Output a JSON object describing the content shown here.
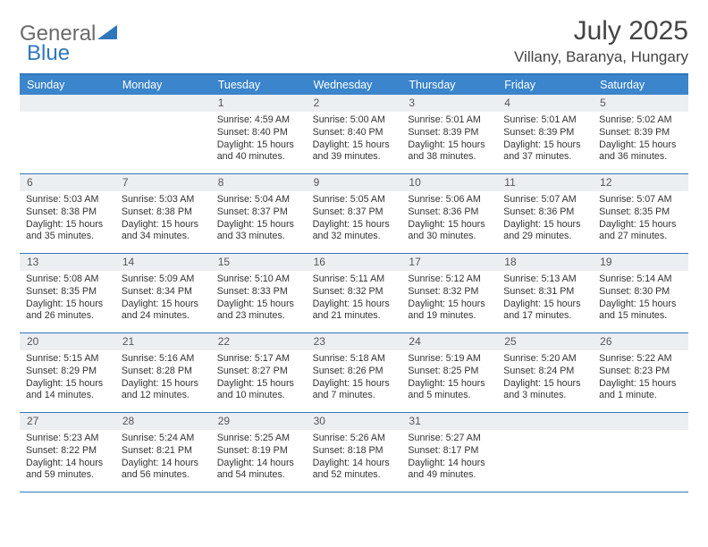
{
  "logo": {
    "part1": "General",
    "part2": "Blue"
  },
  "title": "July 2025",
  "location": "Villany, Baranya, Hungary",
  "header_bg": "#3a85cc",
  "accent": "#2f77bd",
  "num_bg": "#eceff2",
  "day_names": [
    "Sunday",
    "Monday",
    "Tuesday",
    "Wednesday",
    "Thursday",
    "Friday",
    "Saturday"
  ],
  "weeks": [
    [
      {
        "n": "",
        "sr": "",
        "ss": "",
        "dl": ""
      },
      {
        "n": "",
        "sr": "",
        "ss": "",
        "dl": ""
      },
      {
        "n": "1",
        "sr": "Sunrise: 4:59 AM",
        "ss": "Sunset: 8:40 PM",
        "dl": "Daylight: 15 hours and 40 minutes."
      },
      {
        "n": "2",
        "sr": "Sunrise: 5:00 AM",
        "ss": "Sunset: 8:40 PM",
        "dl": "Daylight: 15 hours and 39 minutes."
      },
      {
        "n": "3",
        "sr": "Sunrise: 5:01 AM",
        "ss": "Sunset: 8:39 PM",
        "dl": "Daylight: 15 hours and 38 minutes."
      },
      {
        "n": "4",
        "sr": "Sunrise: 5:01 AM",
        "ss": "Sunset: 8:39 PM",
        "dl": "Daylight: 15 hours and 37 minutes."
      },
      {
        "n": "5",
        "sr": "Sunrise: 5:02 AM",
        "ss": "Sunset: 8:39 PM",
        "dl": "Daylight: 15 hours and 36 minutes."
      }
    ],
    [
      {
        "n": "6",
        "sr": "Sunrise: 5:03 AM",
        "ss": "Sunset: 8:38 PM",
        "dl": "Daylight: 15 hours and 35 minutes."
      },
      {
        "n": "7",
        "sr": "Sunrise: 5:03 AM",
        "ss": "Sunset: 8:38 PM",
        "dl": "Daylight: 15 hours and 34 minutes."
      },
      {
        "n": "8",
        "sr": "Sunrise: 5:04 AM",
        "ss": "Sunset: 8:37 PM",
        "dl": "Daylight: 15 hours and 33 minutes."
      },
      {
        "n": "9",
        "sr": "Sunrise: 5:05 AM",
        "ss": "Sunset: 8:37 PM",
        "dl": "Daylight: 15 hours and 32 minutes."
      },
      {
        "n": "10",
        "sr": "Sunrise: 5:06 AM",
        "ss": "Sunset: 8:36 PM",
        "dl": "Daylight: 15 hours and 30 minutes."
      },
      {
        "n": "11",
        "sr": "Sunrise: 5:07 AM",
        "ss": "Sunset: 8:36 PM",
        "dl": "Daylight: 15 hours and 29 minutes."
      },
      {
        "n": "12",
        "sr": "Sunrise: 5:07 AM",
        "ss": "Sunset: 8:35 PM",
        "dl": "Daylight: 15 hours and 27 minutes."
      }
    ],
    [
      {
        "n": "13",
        "sr": "Sunrise: 5:08 AM",
        "ss": "Sunset: 8:35 PM",
        "dl": "Daylight: 15 hours and 26 minutes."
      },
      {
        "n": "14",
        "sr": "Sunrise: 5:09 AM",
        "ss": "Sunset: 8:34 PM",
        "dl": "Daylight: 15 hours and 24 minutes."
      },
      {
        "n": "15",
        "sr": "Sunrise: 5:10 AM",
        "ss": "Sunset: 8:33 PM",
        "dl": "Daylight: 15 hours and 23 minutes."
      },
      {
        "n": "16",
        "sr": "Sunrise: 5:11 AM",
        "ss": "Sunset: 8:32 PM",
        "dl": "Daylight: 15 hours and 21 minutes."
      },
      {
        "n": "17",
        "sr": "Sunrise: 5:12 AM",
        "ss": "Sunset: 8:32 PM",
        "dl": "Daylight: 15 hours and 19 minutes."
      },
      {
        "n": "18",
        "sr": "Sunrise: 5:13 AM",
        "ss": "Sunset: 8:31 PM",
        "dl": "Daylight: 15 hours and 17 minutes."
      },
      {
        "n": "19",
        "sr": "Sunrise: 5:14 AM",
        "ss": "Sunset: 8:30 PM",
        "dl": "Daylight: 15 hours and 15 minutes."
      }
    ],
    [
      {
        "n": "20",
        "sr": "Sunrise: 5:15 AM",
        "ss": "Sunset: 8:29 PM",
        "dl": "Daylight: 15 hours and 14 minutes."
      },
      {
        "n": "21",
        "sr": "Sunrise: 5:16 AM",
        "ss": "Sunset: 8:28 PM",
        "dl": "Daylight: 15 hours and 12 minutes."
      },
      {
        "n": "22",
        "sr": "Sunrise: 5:17 AM",
        "ss": "Sunset: 8:27 PM",
        "dl": "Daylight: 15 hours and 10 minutes."
      },
      {
        "n": "23",
        "sr": "Sunrise: 5:18 AM",
        "ss": "Sunset: 8:26 PM",
        "dl": "Daylight: 15 hours and 7 minutes."
      },
      {
        "n": "24",
        "sr": "Sunrise: 5:19 AM",
        "ss": "Sunset: 8:25 PM",
        "dl": "Daylight: 15 hours and 5 minutes."
      },
      {
        "n": "25",
        "sr": "Sunrise: 5:20 AM",
        "ss": "Sunset: 8:24 PM",
        "dl": "Daylight: 15 hours and 3 minutes."
      },
      {
        "n": "26",
        "sr": "Sunrise: 5:22 AM",
        "ss": "Sunset: 8:23 PM",
        "dl": "Daylight: 15 hours and 1 minute."
      }
    ],
    [
      {
        "n": "27",
        "sr": "Sunrise: 5:23 AM",
        "ss": "Sunset: 8:22 PM",
        "dl": "Daylight: 14 hours and 59 minutes."
      },
      {
        "n": "28",
        "sr": "Sunrise: 5:24 AM",
        "ss": "Sunset: 8:21 PM",
        "dl": "Daylight: 14 hours and 56 minutes."
      },
      {
        "n": "29",
        "sr": "Sunrise: 5:25 AM",
        "ss": "Sunset: 8:19 PM",
        "dl": "Daylight: 14 hours and 54 minutes."
      },
      {
        "n": "30",
        "sr": "Sunrise: 5:26 AM",
        "ss": "Sunset: 8:18 PM",
        "dl": "Daylight: 14 hours and 52 minutes."
      },
      {
        "n": "31",
        "sr": "Sunrise: 5:27 AM",
        "ss": "Sunset: 8:17 PM",
        "dl": "Daylight: 14 hours and 49 minutes."
      },
      {
        "n": "",
        "sr": "",
        "ss": "",
        "dl": ""
      },
      {
        "n": "",
        "sr": "",
        "ss": "",
        "dl": ""
      }
    ]
  ]
}
